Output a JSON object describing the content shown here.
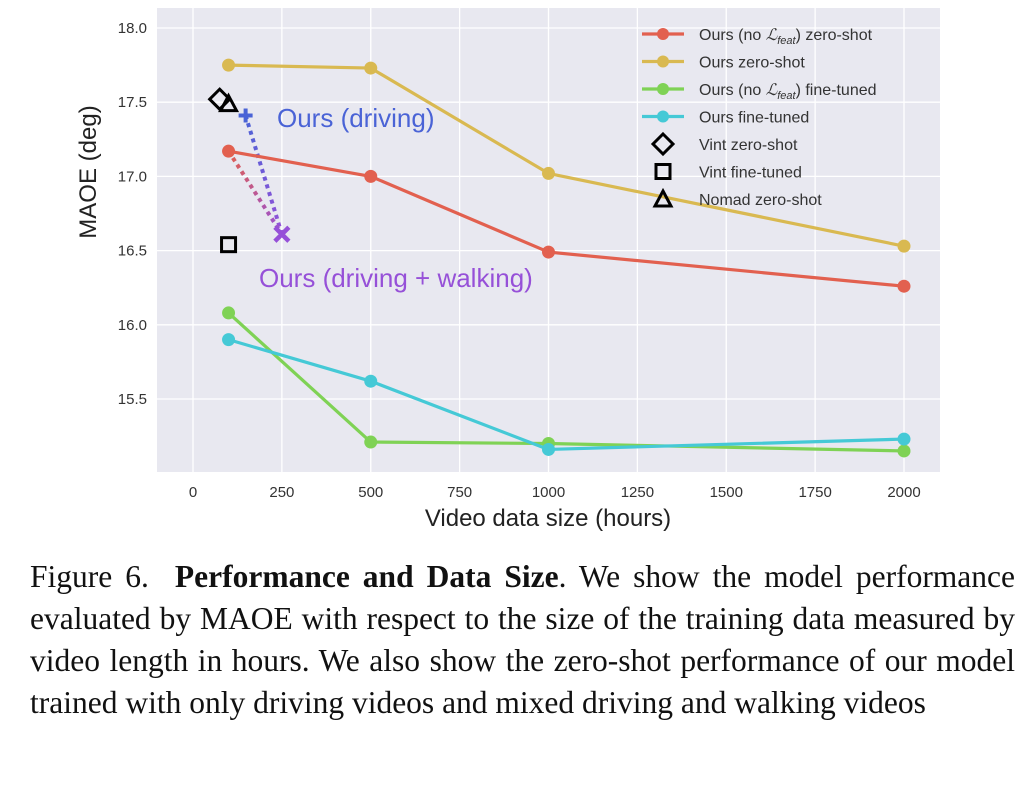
{
  "chart_data": {
    "type": "line",
    "title": "",
    "xlabel": "Video data size (hours)",
    "ylabel": "MAOE (deg)",
    "xlim": [
      -130,
      2070
    ],
    "ylim": [
      15.05,
      18.1
    ],
    "xticks": [
      0,
      250,
      500,
      750,
      1000,
      1250,
      1500,
      1750,
      2000
    ],
    "xtick_labels": [
      "0",
      "250",
      "500",
      "750",
      "1000",
      "1250",
      "1500",
      "1750",
      "2000"
    ],
    "yticks": [
      15.5,
      16.0,
      16.5,
      17.0,
      17.5,
      18.0
    ],
    "ytick_labels": [
      "15.5",
      "16.0",
      "16.5",
      "17.0",
      "17.5",
      "18.0"
    ],
    "grid": true,
    "legend_position": "top-right",
    "series": [
      {
        "name": "Ours (no ℒfeat) zero-shot",
        "legend_main": "Ours (no ",
        "legend_math": "ℒ",
        "legend_sub": "feat",
        "legend_tail": ") zero-shot",
        "color": "#e2604f",
        "x": [
          100,
          500,
          1000,
          2000
        ],
        "values": [
          17.17,
          17.0,
          16.49,
          16.26
        ]
      },
      {
        "name": "Ours zero-shot",
        "legend_main": "Ours zero-shot",
        "legend_math": "",
        "legend_sub": "",
        "legend_tail": "",
        "color": "#d9b951",
        "x": [
          100,
          500,
          1000,
          2000
        ],
        "values": [
          17.75,
          17.73,
          17.02,
          16.53
        ]
      },
      {
        "name": "Ours (no ℒfeat) fine-tuned",
        "legend_main": "Ours (no ",
        "legend_math": "ℒ",
        "legend_sub": "feat",
        "legend_tail": ") fine-tuned",
        "color": "#7fd255",
        "x": [
          100,
          500,
          1000,
          2000
        ],
        "values": [
          16.08,
          15.21,
          15.2,
          15.15
        ]
      },
      {
        "name": "Ours fine-tuned",
        "legend_main": "Ours fine-tuned",
        "legend_math": "",
        "legend_sub": "",
        "legend_tail": "",
        "color": "#45c9d6",
        "x": [
          100,
          500,
          1000,
          2000
        ],
        "values": [
          15.9,
          15.62,
          15.16,
          15.23
        ]
      }
    ],
    "markers": [
      {
        "name": "Vint zero-shot",
        "shape": "diamond",
        "x": 75,
        "y": 17.52,
        "in_legend": true
      },
      {
        "name": "Vint fine-tuned",
        "shape": "square",
        "x": 100,
        "y": 16.54,
        "in_legend": true
      },
      {
        "name": "Nomad zero-shot",
        "shape": "triangle",
        "x": 100,
        "y": 17.49,
        "in_legend": true
      },
      {
        "name": "Ours (driving)",
        "shape": "plus",
        "x": 148,
        "y": 17.41,
        "color": "#4a63d6",
        "in_legend": false
      },
      {
        "name": "Ours (driving + walking)",
        "shape": "x",
        "x": 250,
        "y": 16.61,
        "color": "#9650d8",
        "in_legend": false
      }
    ],
    "dotted_links": [
      {
        "from": "Ours (driving)",
        "to": "Ours (driving + walking)",
        "color_from": "#4a63d6",
        "color_to": "#9650d8"
      },
      {
        "from_point": {
          "x": 100,
          "y": 17.17
        },
        "to": "Ours (driving + walking)",
        "color_from": "#e2604f",
        "color_to": "#9650d8"
      }
    ],
    "annotations": [
      {
        "text": "Ours (driving)",
        "x": 310,
        "y": 17.38,
        "color": "#4a63d6"
      },
      {
        "text": "Ours (driving + walking)",
        "x": 250,
        "y": 16.3,
        "color": "#9650d8"
      }
    ],
    "plot_background": "#e8e8f0"
  },
  "caption": {
    "label": "Figure 6.",
    "bold_title": "Performance and Data Size",
    "text": ". We show the model performance evaluated by MAOE with respect to the size of the training data measured by video length in hours. We also show the zero-shot performance of our model trained with only driving videos and mixed driving and walking videos"
  }
}
